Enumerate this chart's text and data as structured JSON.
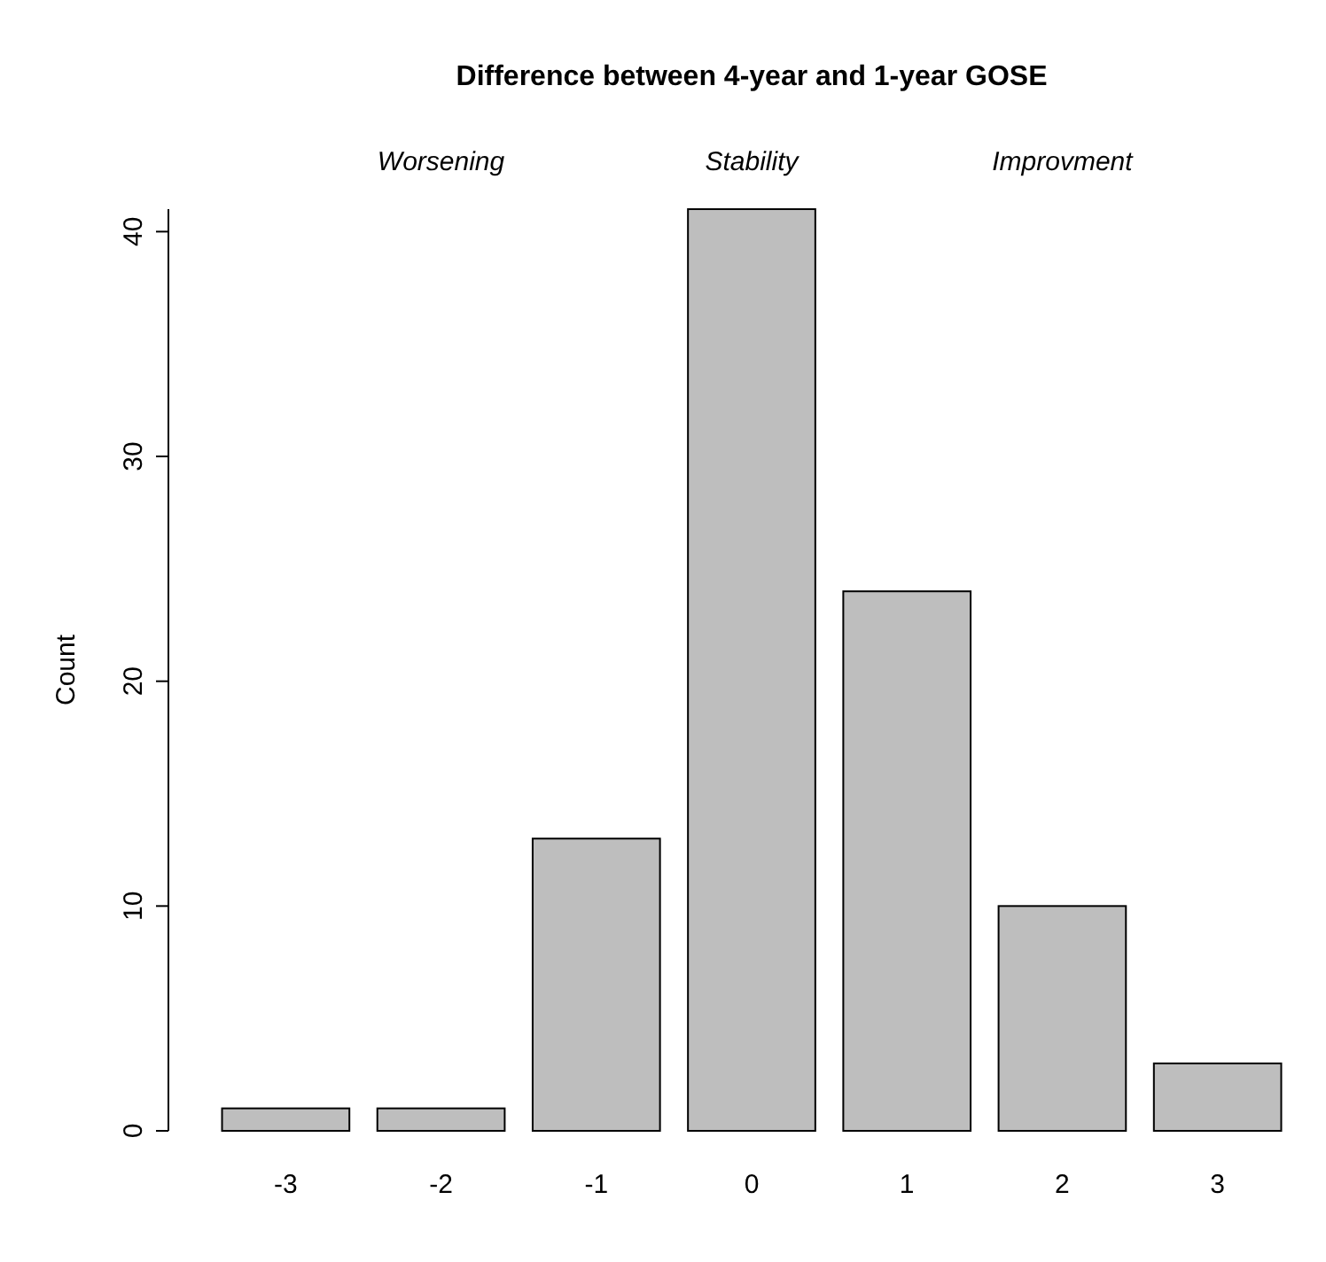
{
  "chart_data": {
    "type": "bar",
    "title": "Difference between 4-year and 1-year GOSE",
    "ylabel": "Count",
    "categories": [
      "-3",
      "-2",
      "-1",
      "0",
      "1",
      "2",
      "3"
    ],
    "values": [
      1,
      1,
      13,
      41,
      24,
      10,
      3
    ],
    "color": "#bebebe",
    "ylim": [
      0,
      41
    ],
    "yticks": [
      0,
      10,
      20,
      30,
      40
    ],
    "grid": false,
    "annotations": [
      "Worsening",
      "Stability",
      "Improvment"
    ]
  }
}
